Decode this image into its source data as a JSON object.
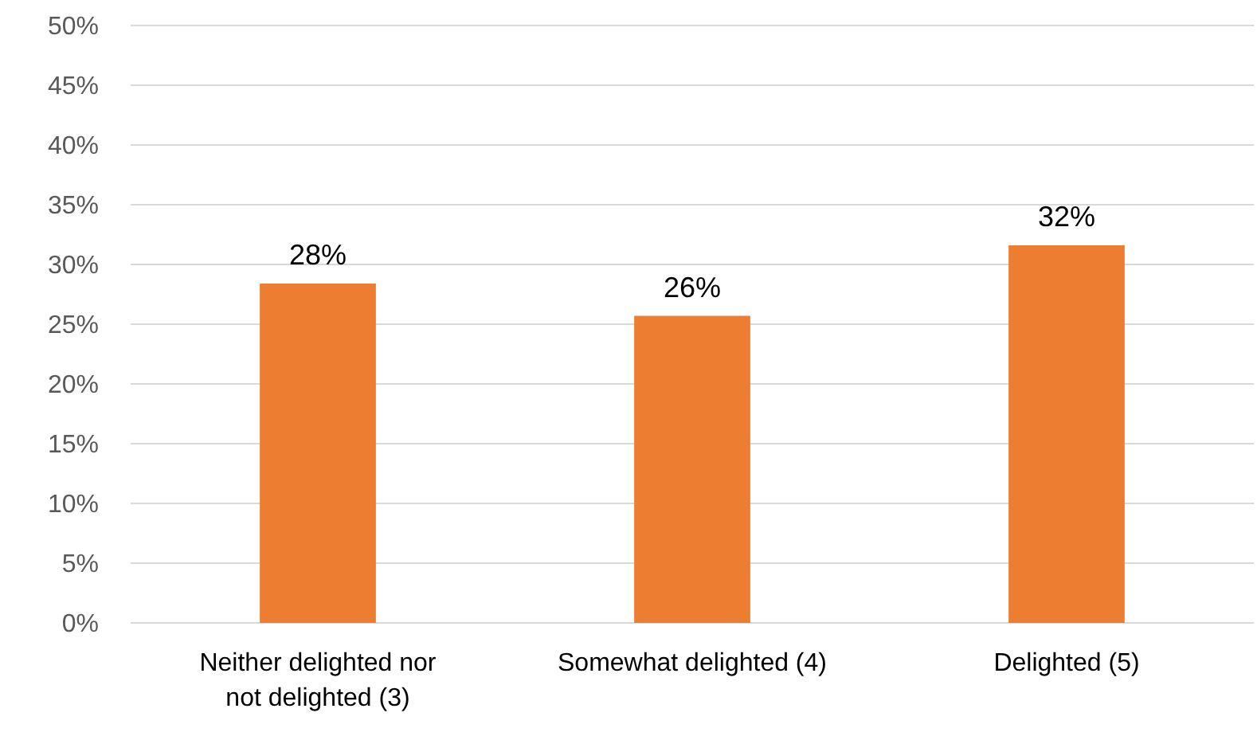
{
  "chart_data": {
    "type": "bar",
    "categories": [
      "Neither delighted nor not delighted (3)",
      "Somewhat delighted (4)",
      "Delighted (5)"
    ],
    "values": [
      28.4,
      25.7,
      31.6
    ],
    "value_labels": [
      "28%",
      "26%",
      "32%"
    ],
    "color": "#ed7d31",
    "ylim": [
      0,
      50
    ],
    "yticks": [
      {
        "value": 0,
        "label": "0%"
      },
      {
        "value": 5,
        "label": "5%"
      },
      {
        "value": 10,
        "label": "10%"
      },
      {
        "value": 15,
        "label": "15%"
      },
      {
        "value": 20,
        "label": "20%"
      },
      {
        "value": 25,
        "label": "25%"
      },
      {
        "value": 30,
        "label": "30%"
      },
      {
        "value": 35,
        "label": "35%"
      },
      {
        "value": 40,
        "label": "40%"
      },
      {
        "value": 45,
        "label": "45%"
      },
      {
        "value": 50,
        "label": "50%"
      }
    ],
    "grid": "y"
  }
}
